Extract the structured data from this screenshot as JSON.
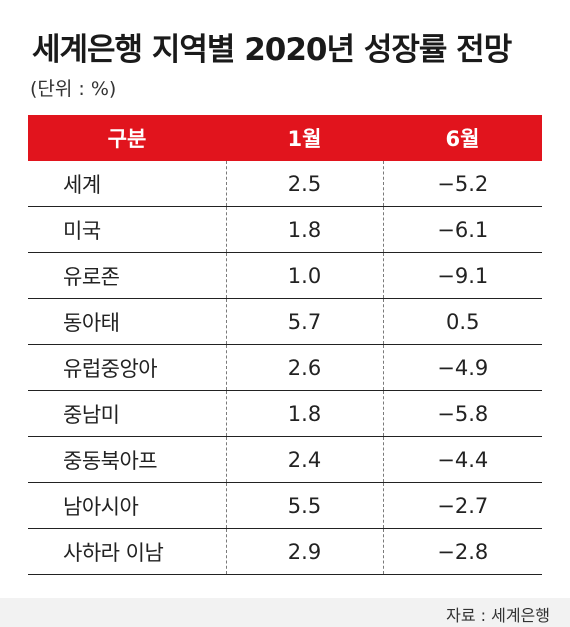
{
  "title": "세계은행 지역별 2020년 성장률 전망",
  "unit": "(단위 : %)",
  "source": "자료 : 세계은행",
  "chart_data": {
    "type": "table",
    "title": "세계은행 지역별 2020년 성장률 전망",
    "unit": "(단위 : %)",
    "columns": [
      "구분",
      "1월",
      "6월"
    ],
    "rows": [
      {
        "region": "세계",
        "jan": "2.5",
        "jun": "−5.2"
      },
      {
        "region": "미국",
        "jan": "1.8",
        "jun": "−6.1"
      },
      {
        "region": "유로존",
        "jan": "1.0",
        "jun": "−9.1"
      },
      {
        "region": "동아태",
        "jan": "5.7",
        "jun": "0.5"
      },
      {
        "region": "유럽중앙아",
        "jan": "2.6",
        "jun": "−4.9"
      },
      {
        "region": "중남미",
        "jan": "1.8",
        "jun": "−5.8"
      },
      {
        "region": "중동북아프",
        "jan": "2.4",
        "jun": "−4.4"
      },
      {
        "region": "남아시아",
        "jan": "5.5",
        "jun": "−2.7"
      },
      {
        "region": "사하라 이남",
        "jan": "2.9",
        "jun": "−2.8"
      }
    ]
  }
}
